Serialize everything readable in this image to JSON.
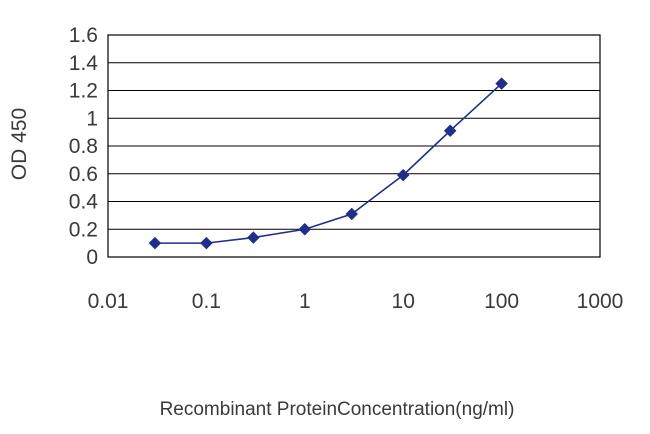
{
  "chart_data": {
    "type": "line",
    "title": "",
    "xlabel": "Recombinant ProteinConcentration(ng/ml)",
    "ylabel": "OD 450",
    "x_scale": "log",
    "xlim": [
      0.01,
      1000
    ],
    "ylim": [
      0,
      1.6
    ],
    "x_ticks": [
      "0.01",
      "0.1",
      "1",
      "10",
      "100",
      "1000"
    ],
    "y_ticks": [
      "0",
      "0.2",
      "0.4",
      "0.6",
      "0.8",
      "1",
      "1.2",
      "1.4",
      "1.6"
    ],
    "grid": "horizontal",
    "legend": "none",
    "series": [
      {
        "color": "#1f2f8a",
        "marker": "diamond",
        "x": [
          0.03,
          0.1,
          0.3,
          1,
          3,
          10,
          30,
          100
        ],
        "y": [
          0.1,
          0.1,
          0.14,
          0.2,
          0.31,
          0.59,
          0.91,
          1.25
        ]
      }
    ]
  }
}
